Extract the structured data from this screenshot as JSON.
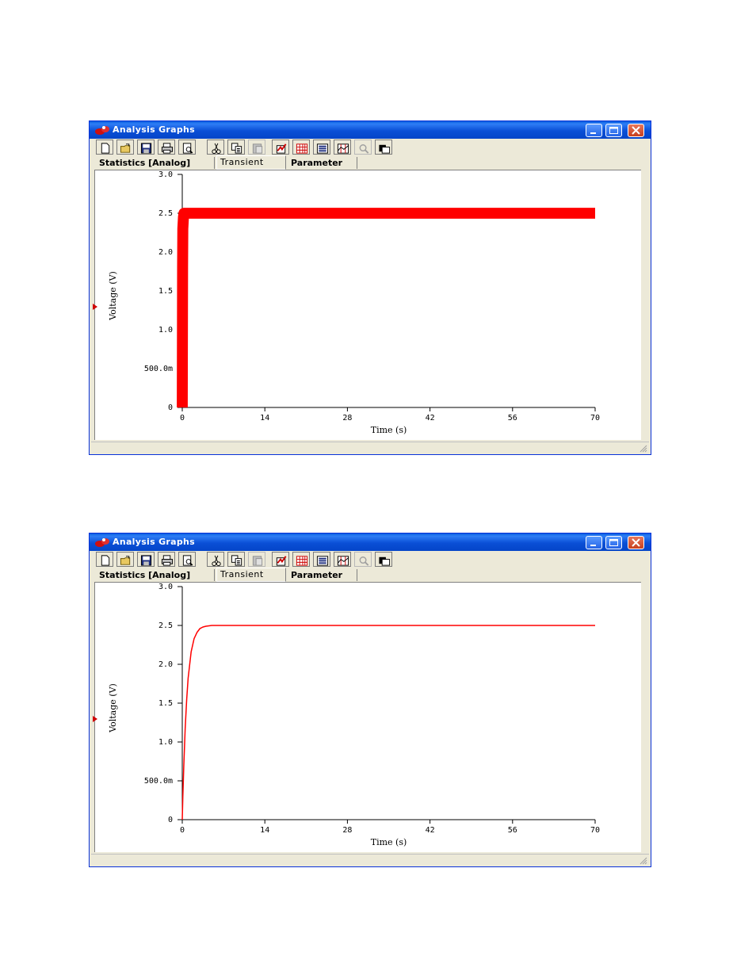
{
  "windows": [
    {
      "title": "Analysis Graphs",
      "tabs": [
        "Statistics [Analog]",
        "Transient",
        "Parameter"
      ],
      "active_tab": "Transient",
      "toolbar": [
        "new-icon",
        "open-icon",
        "save-icon",
        "print-icon",
        "print-preview-icon",
        "cut-icon",
        "copy-icon",
        "paste-icon",
        "properties-icon",
        "grid-icon",
        "legend-icon",
        "cursors-icon",
        "zoom-icon",
        "overlay-icon"
      ],
      "chart_data": {
        "type": "line",
        "xlabel": "Time (s)",
        "ylabel": "Voltage (V)",
        "xlim": [
          0,
          70
        ],
        "ylim": [
          0,
          3.0
        ],
        "xticks": [
          "0",
          "14",
          "28",
          "42",
          "56",
          "70"
        ],
        "yticks": [
          "0",
          "500.0m",
          "1.0",
          "1.5",
          "2.0",
          "2.5",
          "3.0"
        ],
        "series": [
          {
            "color": "#ff0000",
            "x": [
              0,
              0.05,
              0.1,
              0.2,
              0.3,
              0.5,
              0.8,
              1.0,
              1.5,
              70
            ],
            "y": [
              0,
              1.8,
              2.3,
              2.45,
              2.5,
              2.5,
              2.5,
              2.5,
              2.5,
              2.5
            ],
            "band": 0.04
          }
        ]
      }
    },
    {
      "title": "Analysis Graphs",
      "tabs": [
        "Statistics [Analog]",
        "Transient",
        "Parameter"
      ],
      "active_tab": "Transient",
      "toolbar": [
        "new-icon",
        "open-icon",
        "save-icon",
        "print-icon",
        "print-preview-icon",
        "cut-icon",
        "copy-icon",
        "paste-icon",
        "properties-icon",
        "grid-icon",
        "legend-icon",
        "cursors-icon",
        "zoom-icon",
        "overlay-icon"
      ],
      "chart_data": {
        "type": "line",
        "xlabel": "Time (s)",
        "ylabel": "Voltage (V)",
        "xlim": [
          0,
          70
        ],
        "ylim": [
          0,
          3.0
        ],
        "xticks": [
          "0",
          "14",
          "28",
          "42",
          "56",
          "70"
        ],
        "yticks": [
          "0",
          "500.0m",
          "1.0",
          "1.5",
          "2.0",
          "2.5",
          "3.0"
        ],
        "series": [
          {
            "color": "#ff0000",
            "x": [
              0,
              0.1,
              0.25,
              0.5,
              0.75,
              1.0,
              1.5,
              2.0,
              2.5,
              3.0,
              3.5,
              4.0,
              5.0,
              6.0,
              7.0,
              8.0,
              70
            ],
            "y": [
              0,
              0.29,
              0.68,
              1.18,
              1.55,
              1.82,
              2.16,
              2.33,
              2.41,
              2.46,
              2.48,
              2.49,
              2.5,
              2.5,
              2.5,
              2.5,
              2.5
            ],
            "band": 0
          }
        ]
      }
    }
  ]
}
